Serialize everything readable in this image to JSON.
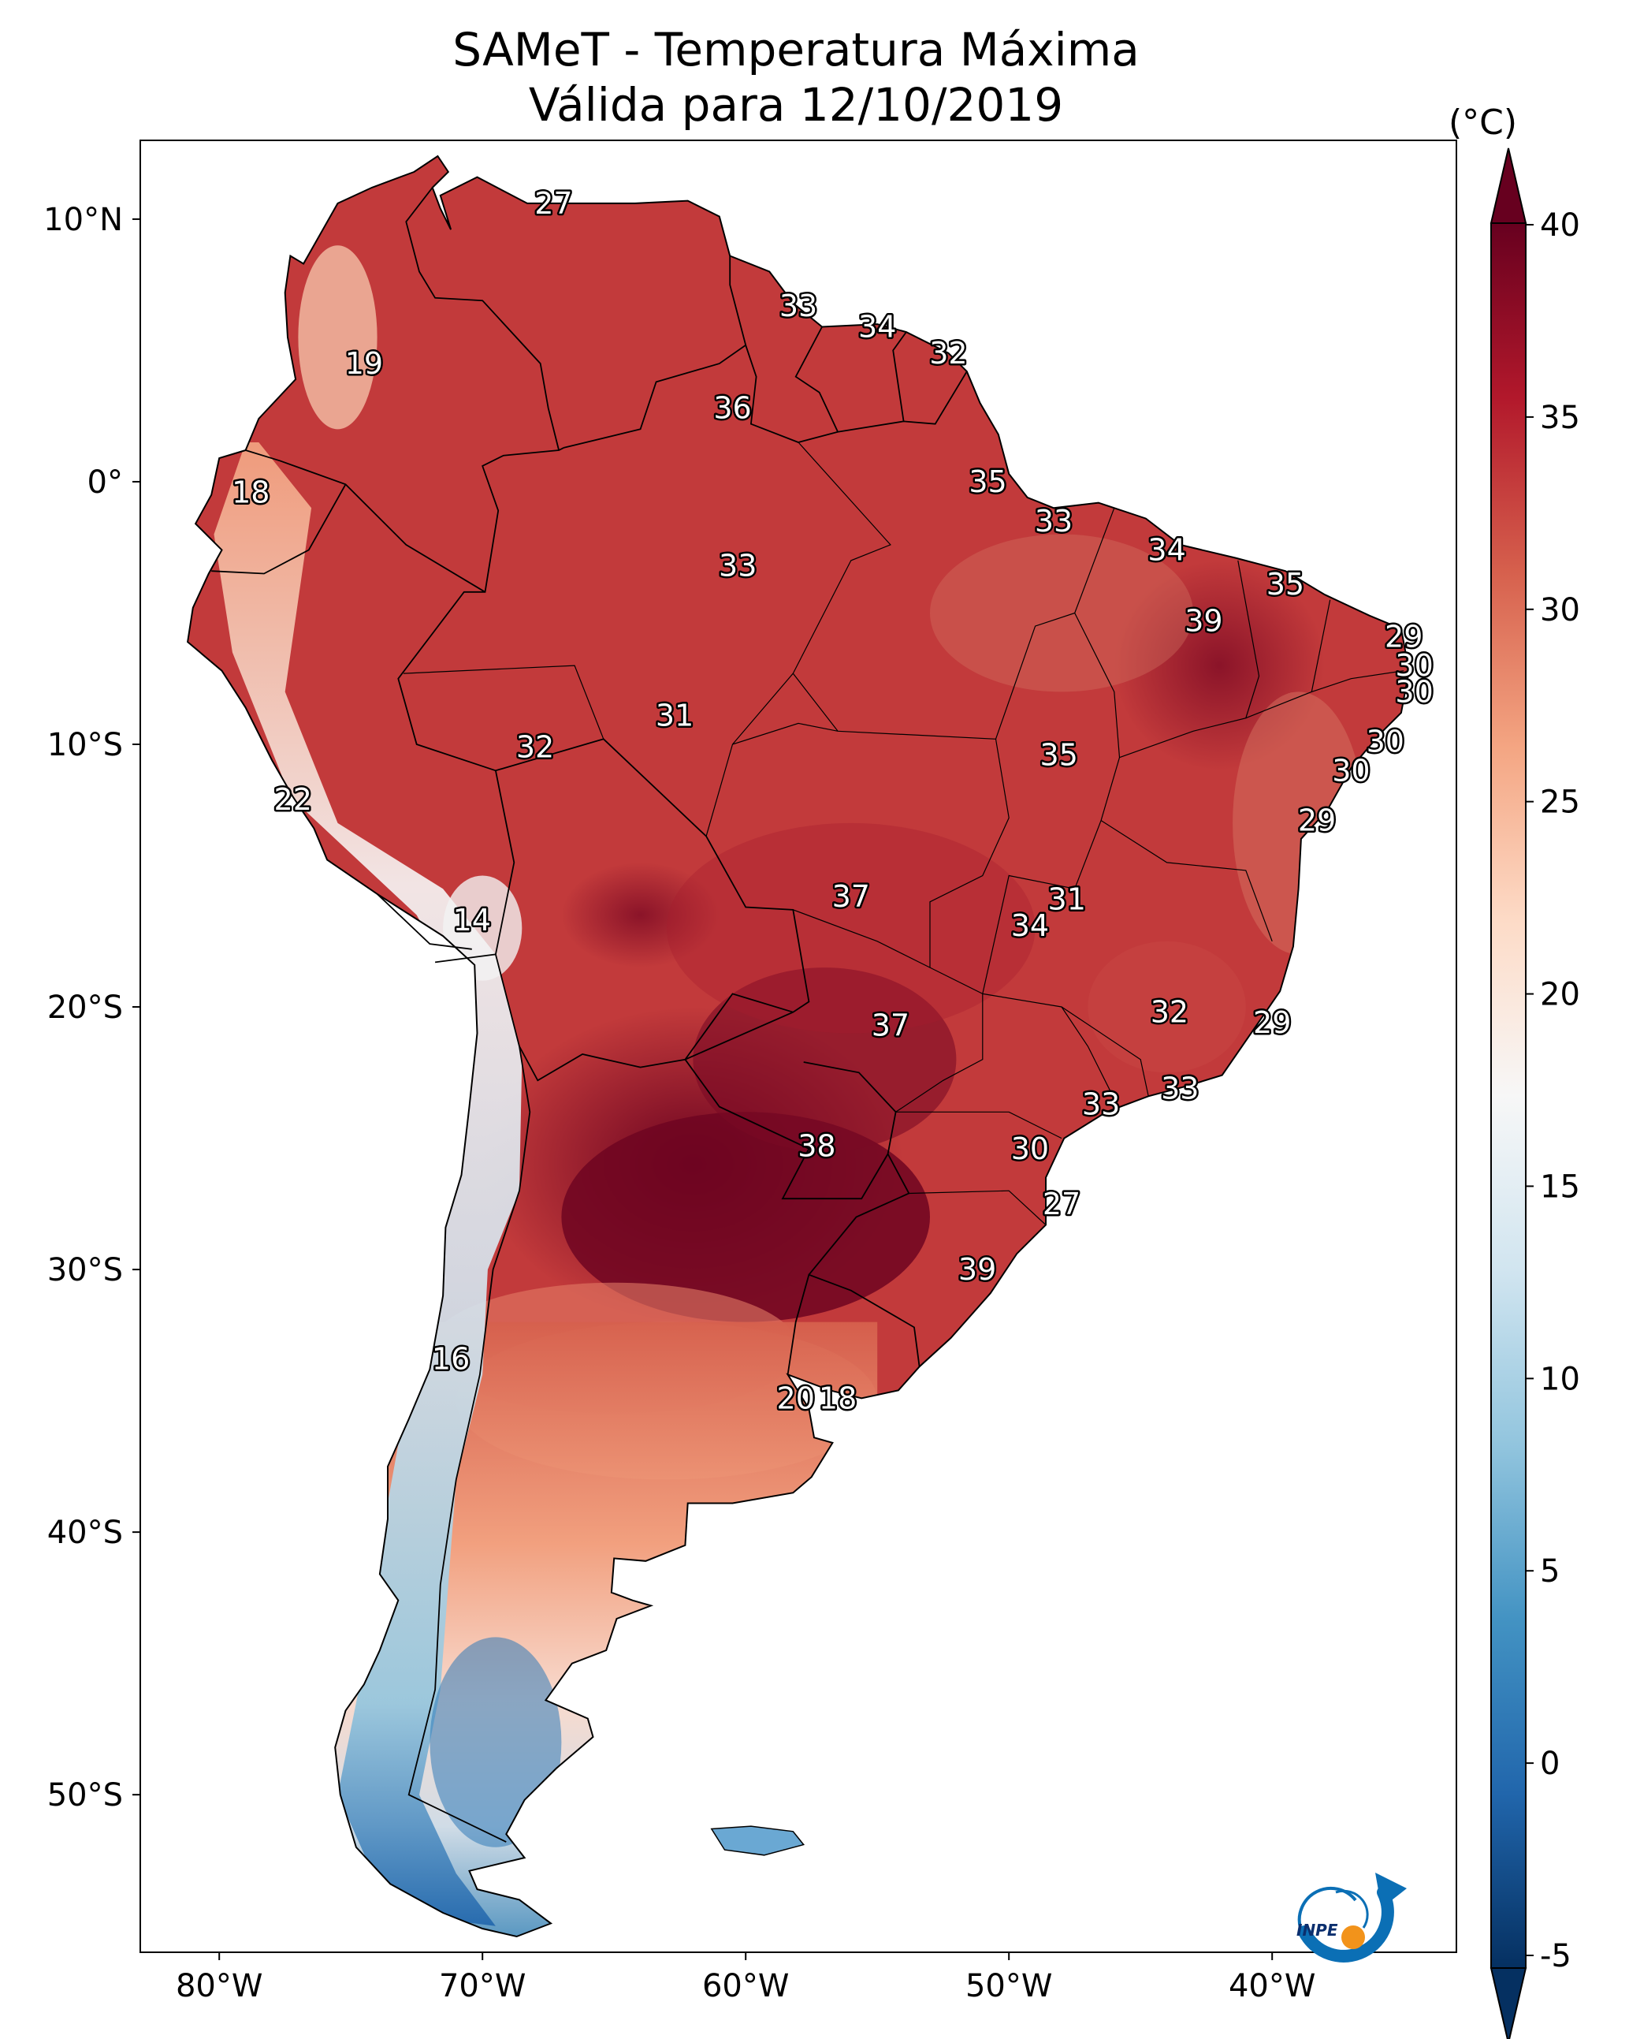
{
  "title": {
    "line1": "SAMeT - Temperatura Máxima",
    "line2": "Válida para 12/10/2019"
  },
  "colorbar": {
    "unit": "(°C)",
    "ticks": [
      "40",
      "35",
      "30",
      "25",
      "20",
      "15",
      "10",
      "5",
      "0",
      "-5"
    ],
    "min": -5,
    "max": 40,
    "colors": [
      "#67001f",
      "#b2182b",
      "#d6604d",
      "#f4a582",
      "#fddbc7",
      "#f7f7f7",
      "#d1e5f0",
      "#92c5de",
      "#4393c3",
      "#2166ac",
      "#053061"
    ]
  },
  "axes": {
    "lon_ticks": [
      "80°W",
      "70°W",
      "60°W",
      "50°W",
      "40°W"
    ],
    "lat_ticks": [
      "10°N",
      "0°",
      "10°S",
      "20°S",
      "30°S",
      "40°S",
      "50°S"
    ]
  },
  "map": {
    "lon_range": [
      -83,
      -33
    ],
    "lat_range": [
      -56,
      13
    ],
    "temperature_labels": [
      {
        "value": "27",
        "lon": -67.3,
        "lat": 10.6
      },
      {
        "value": "33",
        "lon": -58.0,
        "lat": 6.7
      },
      {
        "value": "34",
        "lon": -55.0,
        "lat": 5.9
      },
      {
        "value": "32",
        "lon": -52.3,
        "lat": 4.9
      },
      {
        "value": "19",
        "lon": -74.5,
        "lat": 4.5
      },
      {
        "value": "36",
        "lon": -60.5,
        "lat": 2.8
      },
      {
        "value": "18",
        "lon": -78.8,
        "lat": -0.4
      },
      {
        "value": "35",
        "lon": -50.8,
        "lat": 0.0
      },
      {
        "value": "33",
        "lon": -48.3,
        "lat": -1.5
      },
      {
        "value": "34",
        "lon": -44.0,
        "lat": -2.6
      },
      {
        "value": "33",
        "lon": -60.3,
        "lat": -3.2
      },
      {
        "value": "35",
        "lon": -39.5,
        "lat": -3.9
      },
      {
        "value": "39",
        "lon": -42.6,
        "lat": -5.3
      },
      {
        "value": "29",
        "lon": -35.0,
        "lat": -5.9
      },
      {
        "value": "30",
        "lon": -34.6,
        "lat": -7.0
      },
      {
        "value": "30",
        "lon": -34.6,
        "lat": -8.0
      },
      {
        "value": "31",
        "lon": -62.7,
        "lat": -8.9
      },
      {
        "value": "32",
        "lon": -68.0,
        "lat": -10.1
      },
      {
        "value": "35",
        "lon": -48.1,
        "lat": -10.4
      },
      {
        "value": "30",
        "lon": -35.7,
        "lat": -9.9
      },
      {
        "value": "30",
        "lon": -37.0,
        "lat": -11.0
      },
      {
        "value": "29",
        "lon": -38.3,
        "lat": -12.9
      },
      {
        "value": "22",
        "lon": -77.2,
        "lat": -12.1
      },
      {
        "value": "37",
        "lon": -56.0,
        "lat": -15.8
      },
      {
        "value": "31",
        "lon": -47.8,
        "lat": -15.9
      },
      {
        "value": "34",
        "lon": -49.2,
        "lat": -16.9
      },
      {
        "value": "14",
        "lon": -70.4,
        "lat": -16.7
      },
      {
        "value": "32",
        "lon": -43.9,
        "lat": -20.2
      },
      {
        "value": "29",
        "lon": -40.0,
        "lat": -20.6
      },
      {
        "value": "37",
        "lon": -54.5,
        "lat": -20.7
      },
      {
        "value": "33",
        "lon": -43.5,
        "lat": -23.1
      },
      {
        "value": "33",
        "lon": -46.5,
        "lat": -23.7
      },
      {
        "value": "38",
        "lon": -57.3,
        "lat": -25.3
      },
      {
        "value": "30",
        "lon": -49.2,
        "lat": -25.4
      },
      {
        "value": "27",
        "lon": -48.0,
        "lat": -27.5
      },
      {
        "value": "39",
        "lon": -51.2,
        "lat": -30.0
      },
      {
        "value": "16",
        "lon": -71.2,
        "lat": -33.4
      },
      {
        "value": "20",
        "lon": -58.1,
        "lat": -34.9
      },
      {
        "value": "18",
        "lon": -56.5,
        "lat": -34.9
      }
    ]
  },
  "logo": {
    "text": "INPE"
  }
}
